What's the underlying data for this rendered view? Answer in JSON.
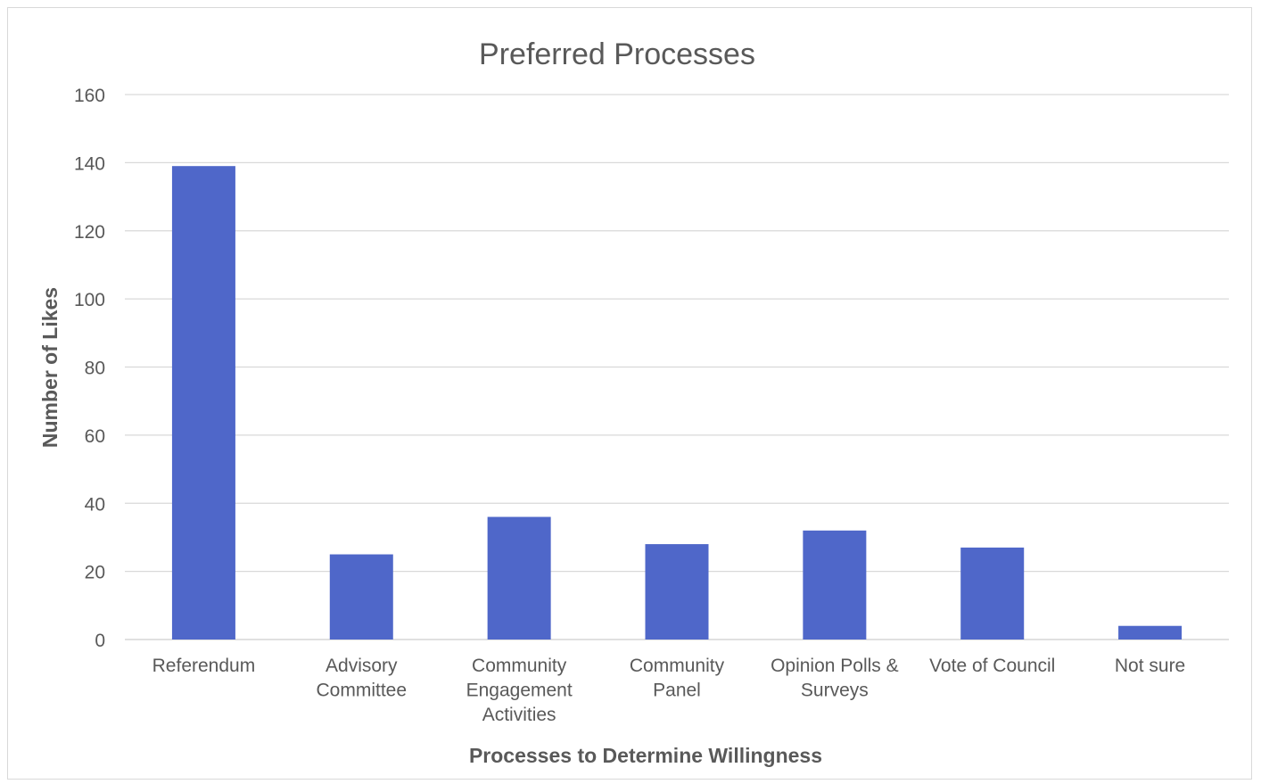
{
  "chart_data": {
    "type": "bar",
    "title": "Preferred Processes",
    "xlabel": "Processes to Determine Willingness",
    "ylabel": "Number of Likes",
    "categories": [
      [
        "Referendum"
      ],
      [
        "Advisory",
        "Committee"
      ],
      [
        "Community",
        "Engagement",
        "Activities"
      ],
      [
        "Community",
        "Panel"
      ],
      [
        "Opinion Polls &",
        "Surveys"
      ],
      [
        "Vote of Council"
      ],
      [
        "Not sure"
      ]
    ],
    "values": [
      139,
      25,
      36,
      28,
      32,
      27,
      4
    ],
    "ylim": [
      0,
      160
    ],
    "yticks": [
      0,
      20,
      40,
      60,
      80,
      100,
      120,
      140,
      160
    ],
    "grid": true,
    "legend": "none",
    "colors": {
      "bar": "#4f67c9",
      "grid": "#d9d9d9",
      "text": "#595959"
    }
  }
}
